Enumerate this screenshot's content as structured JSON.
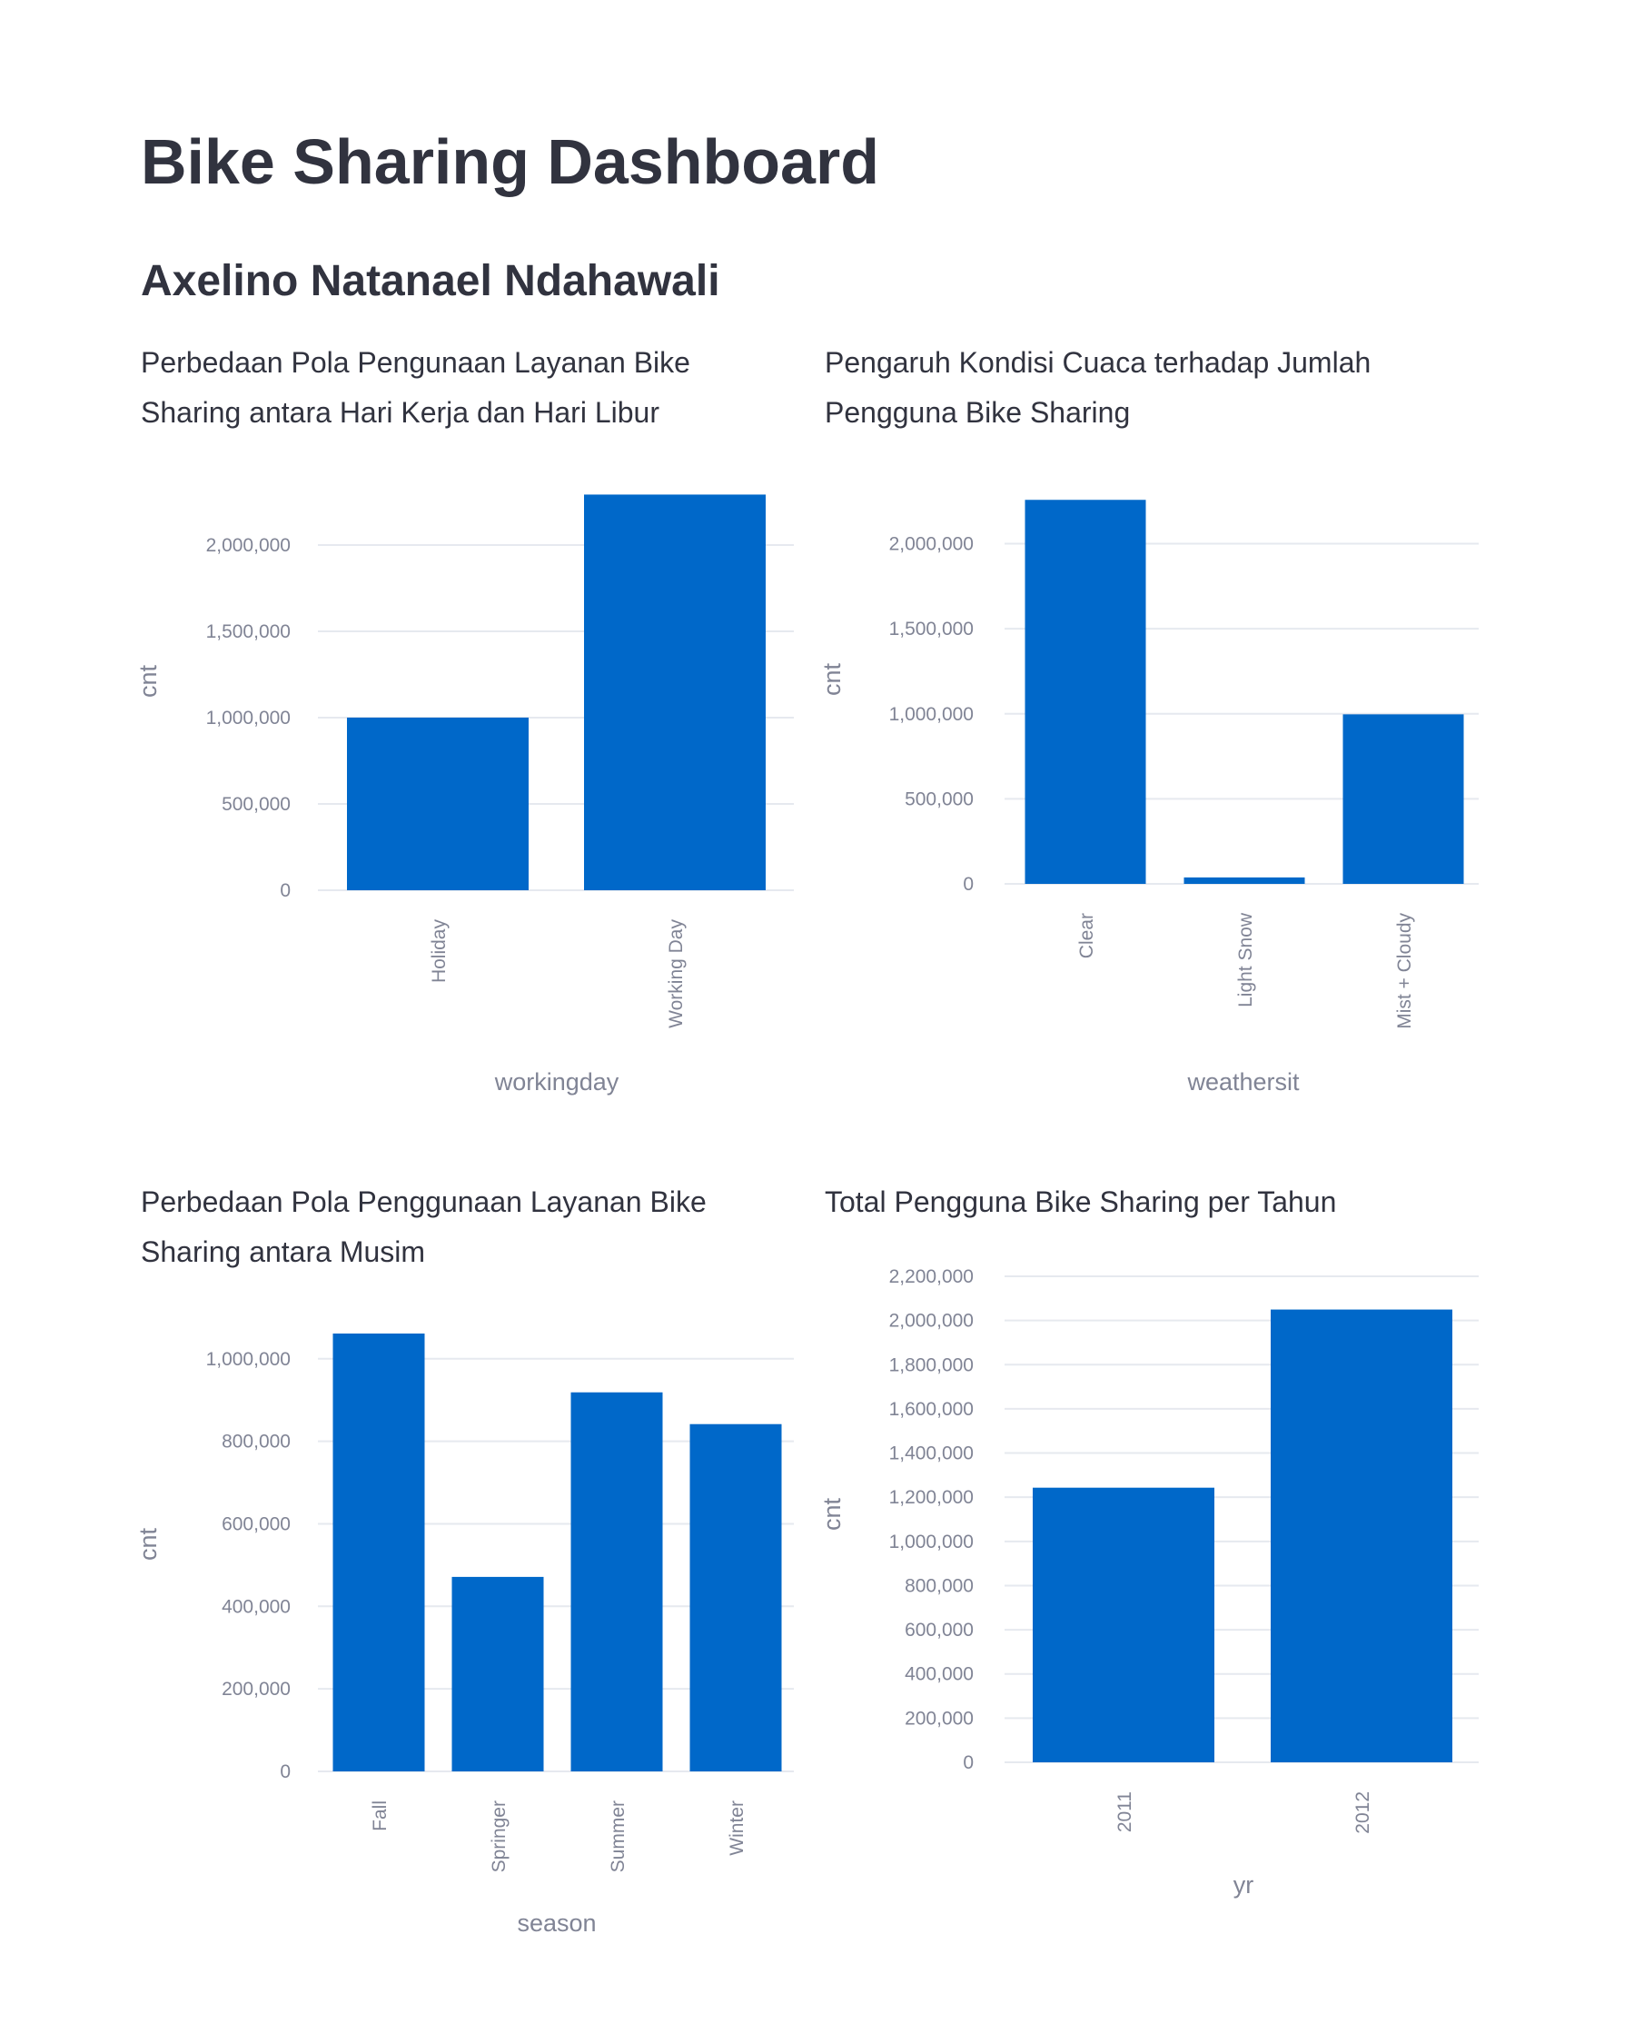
{
  "page": {
    "title": "Bike Sharing Dashboard",
    "author": "Axelino Natanael Ndahawali"
  },
  "captions": {
    "c1": "Perbedaan Pola Pengunaan Layanan Bike Sharing antara Hari Kerja dan Hari Libur",
    "c2": "Pengaruh Kondisi Cuaca terhadap Jumlah Pengguna Bike Sharing",
    "c3": "Perbedaan Pola Penggunaan Layanan Bike Sharing antara Musim",
    "c4": "Total Pengguna Bike Sharing per Tahun"
  },
  "colors": {
    "bar": "#0068c9",
    "grid": "#e6e9ef",
    "axis_text": "#808495"
  },
  "chart_data": [
    {
      "type": "bar",
      "title": "Perbedaan Pola Pengunaan Layanan Bike Sharing antara Hari Kerja dan Hari Libur",
      "xlabel": "workingday",
      "ylabel": "cnt",
      "categories": [
        "Holiday",
        "Working Day"
      ],
      "values": [
        1000269,
        2292410
      ],
      "yticks": [
        0,
        500000,
        1000000,
        1500000,
        2000000
      ],
      "ytick_labels": [
        "0",
        "500,000",
        "1,000,000",
        "1,500,000",
        "2,000,000"
      ],
      "ylim": [
        0,
        2300000
      ],
      "grid": true
    },
    {
      "type": "bar",
      "title": "Pengaruh Kondisi Cuaca terhadap Jumlah Pengguna Bike Sharing",
      "xlabel": "weathersit",
      "ylabel": "cnt",
      "categories": [
        "Clear",
        "Light Snow",
        "Mist + Cloudy"
      ],
      "values": [
        2257952,
        37869,
        996858
      ],
      "yticks": [
        0,
        500000,
        1000000,
        1500000,
        2000000
      ],
      "ytick_labels": [
        "0",
        "500,000",
        "1,000,000",
        "1,500,000",
        "2,000,000"
      ],
      "ylim": [
        0,
        2270000
      ],
      "grid": true
    },
    {
      "type": "bar",
      "title": "Perbedaan Pola Penggunaan Layanan Bike Sharing antara Musim",
      "xlabel": "season",
      "ylabel": "cnt",
      "categories": [
        "Fall",
        "Springer",
        "Summer",
        "Winter"
      ],
      "values": [
        1061129,
        471348,
        918589,
        841613
      ],
      "yticks": [
        0,
        200000,
        400000,
        600000,
        800000,
        1000000
      ],
      "ytick_labels": [
        "0",
        "200,000",
        "400,000",
        "600,000",
        "800,000",
        "1,000,000"
      ],
      "ylim": [
        0,
        1061129
      ],
      "grid": true
    },
    {
      "type": "bar",
      "title": "Total Pengguna Bike Sharing per Tahun",
      "xlabel": "yr",
      "ylabel": "cnt",
      "categories": [
        "2011",
        "2012"
      ],
      "values": [
        1243103,
        2049576
      ],
      "yticks": [
        0,
        200000,
        400000,
        600000,
        800000,
        1000000,
        1200000,
        1400000,
        1600000,
        1800000,
        2000000,
        2200000
      ],
      "ytick_labels": [
        "0",
        "200,000",
        "400,000",
        "600,000",
        "800,000",
        "1,000,000",
        "1,200,000",
        "1,400,000",
        "1,600,000",
        "1,800,000",
        "2,000,000",
        "2,200,000"
      ],
      "ylim": [
        0,
        2200000
      ],
      "grid": true
    }
  ]
}
